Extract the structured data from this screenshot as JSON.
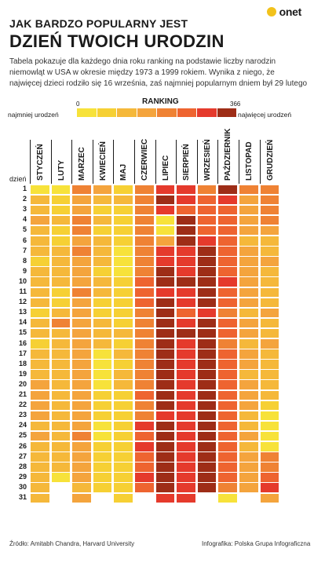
{
  "brand": {
    "logo": "onet"
  },
  "title": {
    "line1": "JAK BARDZO POPULARNY JEST",
    "line2": "DZIEŃ TWOICH URODZIN"
  },
  "description": "Tabela pokazuje dla każdego dnia roku ranking na podstawie liczby narodzin niemowląt w USA w okresie między 1973 a 1999 rokiem. Wynika z niego, że najwięcej dzieci rodziło się 16 września, zaś najmniej popularnym dniem był 29 lutego",
  "legend": {
    "title": "RANKING",
    "min": "0",
    "max": "366",
    "left_label": "najmniej urodzeń",
    "right_label": "najwięcej urodzeń",
    "colors": [
      "#f7e23a",
      "#f6d034",
      "#f5b83a",
      "#f4a43d",
      "#ef8234",
      "#ee6430",
      "#e53a2c",
      "#9e2d17"
    ]
  },
  "footer": {
    "source": "Źródło: Amitabh Chandra, Harvard University",
    "credit": "Infografika: Polska Grupa Infograficzna"
  },
  "chart_data": {
    "type": "heatmap",
    "title": "DZIEŃ TWOICH URODZIN",
    "xlabel": "",
    "ylabel": "dzień",
    "x": [
      "STYCZEŃ",
      "LUTY",
      "MARZEC",
      "KWIECIEŃ",
      "MAJ",
      "CZERWIEC",
      "LIPIEC",
      "SIERPIEŃ",
      "WRZESIEŃ",
      "PAŹDZIERNIK",
      "LISTOPAD",
      "GRUDZIEŃ"
    ],
    "y": [
      1,
      2,
      3,
      4,
      5,
      6,
      7,
      8,
      9,
      10,
      11,
      12,
      13,
      14,
      15,
      16,
      17,
      18,
      19,
      20,
      21,
      22,
      23,
      24,
      25,
      26,
      27,
      28,
      29,
      30,
      31
    ],
    "value_range": [
      0,
      366
    ],
    "note": "values are color levels 0-7 (0 = najmniej urodzeń, 7 = najwięcej urodzeń); null = day does not exist",
    "values": [
      [
        0,
        0,
        4,
        3,
        1,
        4,
        6,
        6,
        4,
        7,
        4,
        4
      ],
      [
        2,
        1,
        3,
        2,
        2,
        4,
        7,
        6,
        5,
        6,
        3,
        4
      ],
      [
        2,
        1,
        3,
        1,
        1,
        4,
        6,
        5,
        5,
        5,
        3,
        4
      ],
      [
        3,
        2,
        4,
        2,
        1,
        4,
        0,
        7,
        5,
        5,
        3,
        4
      ],
      [
        2,
        1,
        4,
        1,
        1,
        4,
        0,
        7,
        5,
        5,
        3,
        3
      ],
      [
        2,
        1,
        3,
        2,
        1,
        4,
        3,
        7,
        6,
        5,
        2,
        2
      ],
      [
        2,
        2,
        4,
        2,
        0,
        4,
        6,
        6,
        7,
        5,
        3,
        2
      ],
      [
        1,
        2,
        3,
        2,
        0,
        4,
        6,
        6,
        7,
        5,
        3,
        3
      ],
      [
        2,
        2,
        3,
        1,
        0,
        4,
        7,
        6,
        7,
        5,
        3,
        2
      ],
      [
        2,
        2,
        3,
        2,
        1,
        5,
        7,
        7,
        7,
        6,
        3,
        2
      ],
      [
        2,
        1,
        4,
        2,
        1,
        5,
        6,
        6,
        7,
        5,
        3,
        2
      ],
      [
        2,
        1,
        3,
        1,
        1,
        5,
        7,
        6,
        7,
        5,
        3,
        2
      ],
      [
        1,
        2,
        3,
        1,
        1,
        4,
        7,
        5,
        6,
        4,
        2,
        3
      ],
      [
        2,
        4,
        3,
        2,
        1,
        4,
        7,
        6,
        7,
        5,
        3,
        2
      ],
      [
        2,
        2,
        3,
        2,
        2,
        4,
        7,
        7,
        7,
        5,
        3,
        2
      ],
      [
        1,
        2,
        3,
        2,
        1,
        4,
        7,
        6,
        7,
        4,
        2,
        3
      ],
      [
        2,
        2,
        3,
        0,
        2,
        4,
        7,
        6,
        7,
        5,
        3,
        2
      ],
      [
        2,
        2,
        3,
        0,
        1,
        4,
        7,
        6,
        7,
        5,
        3,
        2
      ],
      [
        2,
        2,
        3,
        0,
        2,
        4,
        7,
        6,
        7,
        5,
        2,
        2
      ],
      [
        3,
        2,
        3,
        0,
        2,
        4,
        7,
        6,
        7,
        5,
        3,
        2
      ],
      [
        3,
        2,
        3,
        1,
        1,
        5,
        7,
        6,
        7,
        5,
        3,
        2
      ],
      [
        3,
        2,
        3,
        1,
        1,
        4,
        7,
        6,
        7,
        5,
        3,
        1
      ],
      [
        3,
        2,
        3,
        1,
        1,
        4,
        6,
        6,
        7,
        5,
        2,
        0
      ],
      [
        2,
        2,
        3,
        0,
        1,
        6,
        7,
        6,
        7,
        5,
        2,
        0
      ],
      [
        3,
        2,
        4,
        0,
        1,
        5,
        7,
        6,
        7,
        5,
        3,
        0
      ],
      [
        2,
        2,
        3,
        1,
        1,
        6,
        7,
        6,
        7,
        5,
        2,
        0
      ],
      [
        2,
        2,
        3,
        1,
        1,
        5,
        7,
        6,
        7,
        5,
        3,
        4
      ],
      [
        2,
        2,
        3,
        1,
        1,
        5,
        7,
        6,
        7,
        5,
        3,
        4
      ],
      [
        2,
        0,
        3,
        1,
        1,
        6,
        7,
        6,
        7,
        5,
        3,
        5
      ],
      [
        2,
        null,
        2,
        1,
        1,
        5,
        7,
        6,
        7,
        4,
        3,
        6
      ],
      [
        2,
        null,
        3,
        null,
        1,
        null,
        6,
        6,
        null,
        0,
        null,
        3
      ]
    ]
  }
}
